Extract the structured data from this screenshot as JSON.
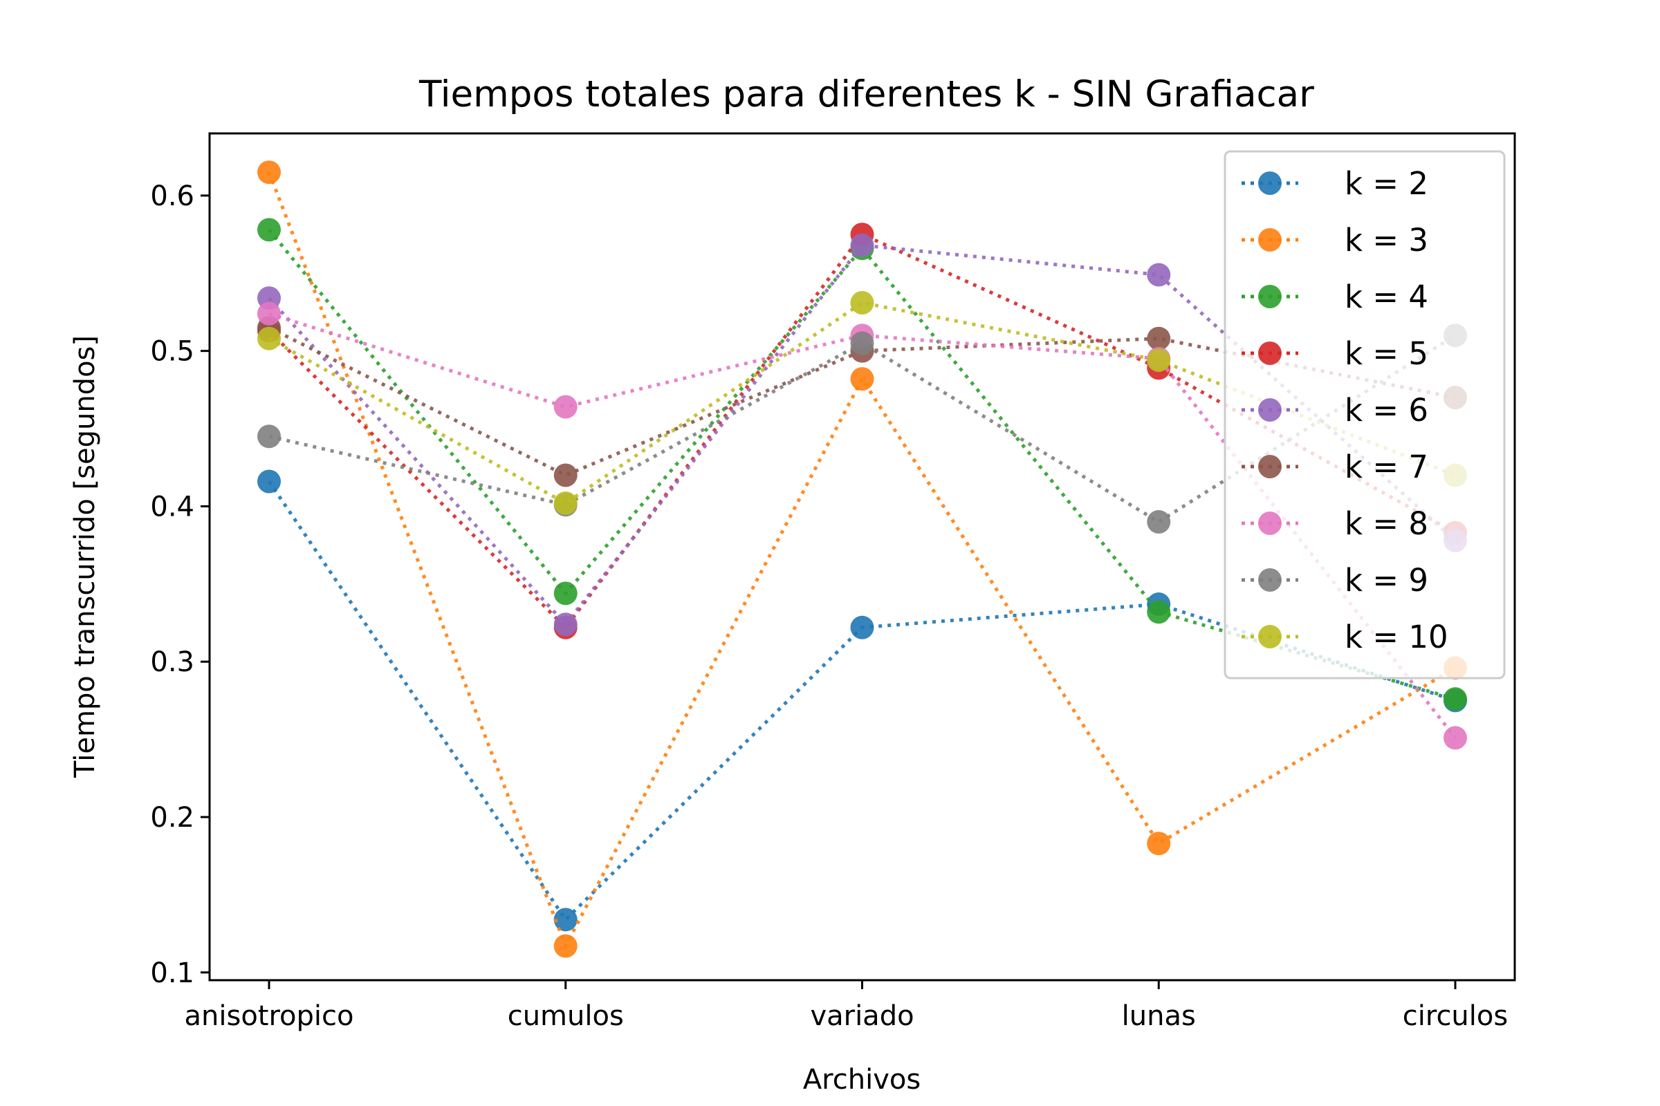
{
  "chart_data": {
    "type": "line",
    "title": "Tiempos totales para diferentes k - SIN Grafiacar",
    "xlabel": "Archivos",
    "ylabel": "Tiempo transcurrido [segundos]",
    "categories": [
      "anisotropico",
      "cumulos",
      "variado",
      "lunas",
      "circulos"
    ],
    "ylim": [
      0.095,
      0.64
    ],
    "yticks": [
      0.1,
      0.2,
      0.3,
      0.4,
      0.5,
      0.6
    ],
    "ytick_labels": [
      "0.1",
      "0.2",
      "0.3",
      "0.4",
      "0.5",
      "0.6"
    ],
    "line_style": "dotted",
    "marker": "circle",
    "grid": false,
    "legend_position": "upper-right",
    "series": [
      {
        "name": "k = 2",
        "color": "#1f77b4",
        "values": [
          0.416,
          0.134,
          0.322,
          0.337,
          0.275
        ]
      },
      {
        "name": "k = 3",
        "color": "#ff7f0e",
        "values": [
          0.615,
          0.117,
          0.482,
          0.183,
          0.296
        ]
      },
      {
        "name": "k = 4",
        "color": "#2ca02c",
        "values": [
          0.578,
          0.344,
          0.566,
          0.332,
          0.276
        ]
      },
      {
        "name": "k = 5",
        "color": "#d62728",
        "values": [
          0.513,
          0.322,
          0.575,
          0.489,
          0.383
        ]
      },
      {
        "name": "k = 6",
        "color": "#9467bd",
        "values": [
          0.534,
          0.324,
          0.568,
          0.549,
          0.378
        ]
      },
      {
        "name": "k = 7",
        "color": "#8c564b",
        "values": [
          0.515,
          0.42,
          0.5,
          0.508,
          0.47
        ]
      },
      {
        "name": "k = 8",
        "color": "#e377c2",
        "values": [
          0.524,
          0.464,
          0.51,
          0.495,
          0.251
        ]
      },
      {
        "name": "k = 9",
        "color": "#7f7f7f",
        "values": [
          0.445,
          0.401,
          0.505,
          0.39,
          0.51
        ]
      },
      {
        "name": "k = 10",
        "color": "#bcbd22",
        "values": [
          0.508,
          0.402,
          0.531,
          0.494,
          0.42
        ]
      }
    ]
  }
}
